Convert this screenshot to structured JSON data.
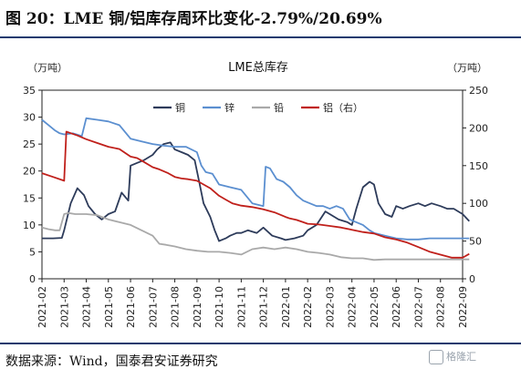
{
  "figure": {
    "title": "图 20：LME 铜/铝库存周环比变化-2.79%/20.69%",
    "source": "数据来源：Wind，国泰君安证券研究",
    "watermark": "格隆汇"
  },
  "chart_data": {
    "type": "line",
    "title": "LME总库存",
    "left_unit": "（万吨）",
    "right_unit": "（万吨）",
    "y_left": {
      "min": 0,
      "max": 35,
      "ticks": [
        "0",
        "5",
        "10",
        "15",
        "20",
        "25",
        "30",
        "35"
      ]
    },
    "y_right": {
      "min": 0,
      "max": 250,
      "ticks": [
        "0",
        "50",
        "100",
        "150",
        "200",
        "250"
      ]
    },
    "x_start": "2021-02",
    "x_end": "2022-09",
    "x_ticks": [
      "2021-02",
      "2021-03",
      "2021-04",
      "2021-05",
      "2021-06",
      "2021-07",
      "2021-08",
      "2021-09",
      "2021-10",
      "2021-11",
      "2021-12",
      "2022-01",
      "2022-02",
      "2022-03",
      "2022-04",
      "2022-05",
      "2022-06",
      "2022-07",
      "2022-08",
      "2022-09"
    ],
    "legend": {
      "placement": "top-center"
    },
    "series": [
      {
        "name": "铜",
        "axis": "left",
        "color": "#2d3b5a",
        "x": [
          0,
          0.5,
          0.9,
          1.0,
          1.3,
          1.6,
          1.9,
          2.1,
          2.4,
          2.7,
          3.0,
          3.3,
          3.6,
          3.9,
          4.0,
          4.3,
          4.6,
          5.0,
          5.2,
          5.5,
          5.8,
          6.0,
          6.3,
          6.6,
          6.9,
          7.1,
          7.3,
          7.6,
          7.8,
          8.0,
          8.3,
          8.5,
          8.8,
          9.0,
          9.3,
          9.7,
          10.0,
          10.4,
          10.8,
          11.0,
          11.4,
          11.8,
          12.0,
          12.4,
          12.8,
          13.0,
          13.4,
          13.8,
          14.0,
          14.2,
          14.5,
          14.8,
          15.0,
          15.2,
          15.5,
          15.8,
          16.0,
          16.3,
          16.6,
          17.0,
          17.3,
          17.6,
          18.0,
          18.3,
          18.6,
          19.0,
          19.3
        ],
        "y": [
          7.5,
          7.5,
          7.6,
          9.0,
          14.0,
          16.8,
          15.5,
          13.5,
          12.0,
          11.0,
          12.0,
          12.5,
          16.0,
          14.5,
          21.0,
          21.5,
          22.0,
          23.0,
          24.0,
          25.0,
          25.3,
          24.0,
          23.5,
          23.0,
          22.0,
          18.0,
          14.0,
          11.5,
          9.0,
          7.0,
          7.5,
          8.0,
          8.5,
          8.5,
          9.0,
          8.5,
          9.5,
          8.0,
          7.5,
          7.2,
          7.5,
          8.0,
          9.0,
          10.0,
          12.5,
          12.0,
          11.0,
          10.5,
          10.0,
          13.0,
          17.0,
          18.0,
          17.5,
          14.0,
          12.0,
          11.5,
          13.5,
          13.0,
          13.5,
          14.0,
          13.5,
          14.0,
          13.5,
          13.0,
          13.0,
          12.0,
          10.7
        ]
      },
      {
        "name": "锌",
        "axis": "left",
        "color": "#5b8fd0",
        "x": [
          0,
          0.3,
          0.6,
          0.8,
          1.0,
          1.4,
          1.8,
          2.0,
          2.5,
          3.0,
          3.5,
          4.0,
          4.5,
          5.0,
          5.5,
          6.0,
          6.5,
          7.0,
          7.2,
          7.4,
          7.7,
          8.0,
          8.5,
          9.0,
          9.5,
          10.0,
          10.1,
          10.3,
          10.6,
          10.9,
          11.2,
          11.5,
          11.8,
          12.1,
          12.4,
          12.7,
          13.0,
          13.3,
          13.6,
          13.9,
          14.2,
          14.5,
          14.8,
          15.0,
          15.5,
          16.0,
          16.5,
          17.0,
          17.5,
          18.0,
          18.5,
          19.0,
          19.3
        ],
        "y": [
          29.5,
          28.5,
          27.5,
          27.0,
          26.8,
          27.0,
          26.5,
          29.8,
          29.5,
          29.2,
          28.5,
          26.0,
          25.5,
          25.0,
          24.7,
          24.5,
          24.5,
          23.5,
          21.0,
          19.8,
          19.5,
          17.5,
          17.0,
          16.5,
          14.0,
          13.5,
          20.8,
          20.5,
          18.5,
          18.0,
          17.0,
          15.5,
          14.5,
          14.0,
          13.5,
          13.5,
          13.0,
          13.5,
          13.0,
          11.0,
          10.5,
          10.0,
          9.0,
          8.5,
          8.0,
          7.5,
          7.3,
          7.3,
          7.5,
          7.5,
          7.5,
          7.5,
          7.5
        ]
      },
      {
        "name": "铅",
        "axis": "left",
        "color": "#a9a9a9",
        "x": [
          0,
          0.3,
          0.6,
          0.8,
          1.0,
          1.2,
          1.5,
          2.0,
          2.5,
          3.0,
          3.5,
          4.0,
          4.5,
          5.0,
          5.3,
          5.6,
          6.0,
          6.5,
          7.0,
          7.5,
          8.0,
          8.5,
          9.0,
          9.5,
          10.0,
          10.5,
          11.0,
          11.5,
          12.0,
          12.5,
          13.0,
          13.5,
          14.0,
          14.5,
          15.0,
          15.5,
          16.0,
          17.0,
          18.0,
          19.0,
          19.3
        ],
        "y": [
          9.5,
          9.2,
          9.0,
          9.0,
          12.0,
          12.2,
          12.0,
          12.0,
          11.8,
          11.0,
          10.5,
          10.0,
          9.0,
          8.0,
          6.5,
          6.3,
          6.0,
          5.5,
          5.2,
          5.0,
          5.0,
          4.8,
          4.5,
          5.5,
          5.8,
          5.5,
          5.8,
          5.5,
          5.0,
          4.8,
          4.5,
          4.0,
          3.8,
          3.8,
          3.5,
          3.6,
          3.6,
          3.6,
          3.6,
          3.6,
          3.6
        ]
      },
      {
        "name": "铝（右）",
        "axis": "right",
        "color": "#c0201b",
        "x": [
          0,
          0.5,
          1.0,
          1.1,
          1.3,
          1.6,
          2.0,
          2.5,
          3.0,
          3.5,
          4.0,
          4.3,
          4.6,
          5.0,
          5.3,
          5.7,
          6.0,
          6.3,
          6.6,
          7.0,
          7.3,
          7.6,
          8.0,
          8.3,
          8.6,
          9.0,
          9.5,
          10.0,
          10.5,
          11.0,
          11.2,
          11.5,
          11.8,
          12.0,
          12.5,
          13.0,
          13.5,
          14.0,
          14.5,
          15.0,
          15.5,
          16.0,
          16.5,
          17.0,
          17.5,
          18.0,
          18.5,
          19.0,
          19.3
        ],
        "y": [
          140,
          135,
          130,
          195,
          193,
          190,
          185,
          180,
          175,
          172,
          162,
          160,
          155,
          148,
          145,
          140,
          135,
          133,
          132,
          130,
          125,
          120,
          110,
          105,
          100,
          97,
          95,
          92,
          88,
          82,
          80,
          78,
          75,
          73,
          72,
          70,
          68,
          65,
          62,
          60,
          55,
          52,
          48,
          42,
          36,
          32,
          28,
          28,
          33
        ]
      }
    ]
  }
}
